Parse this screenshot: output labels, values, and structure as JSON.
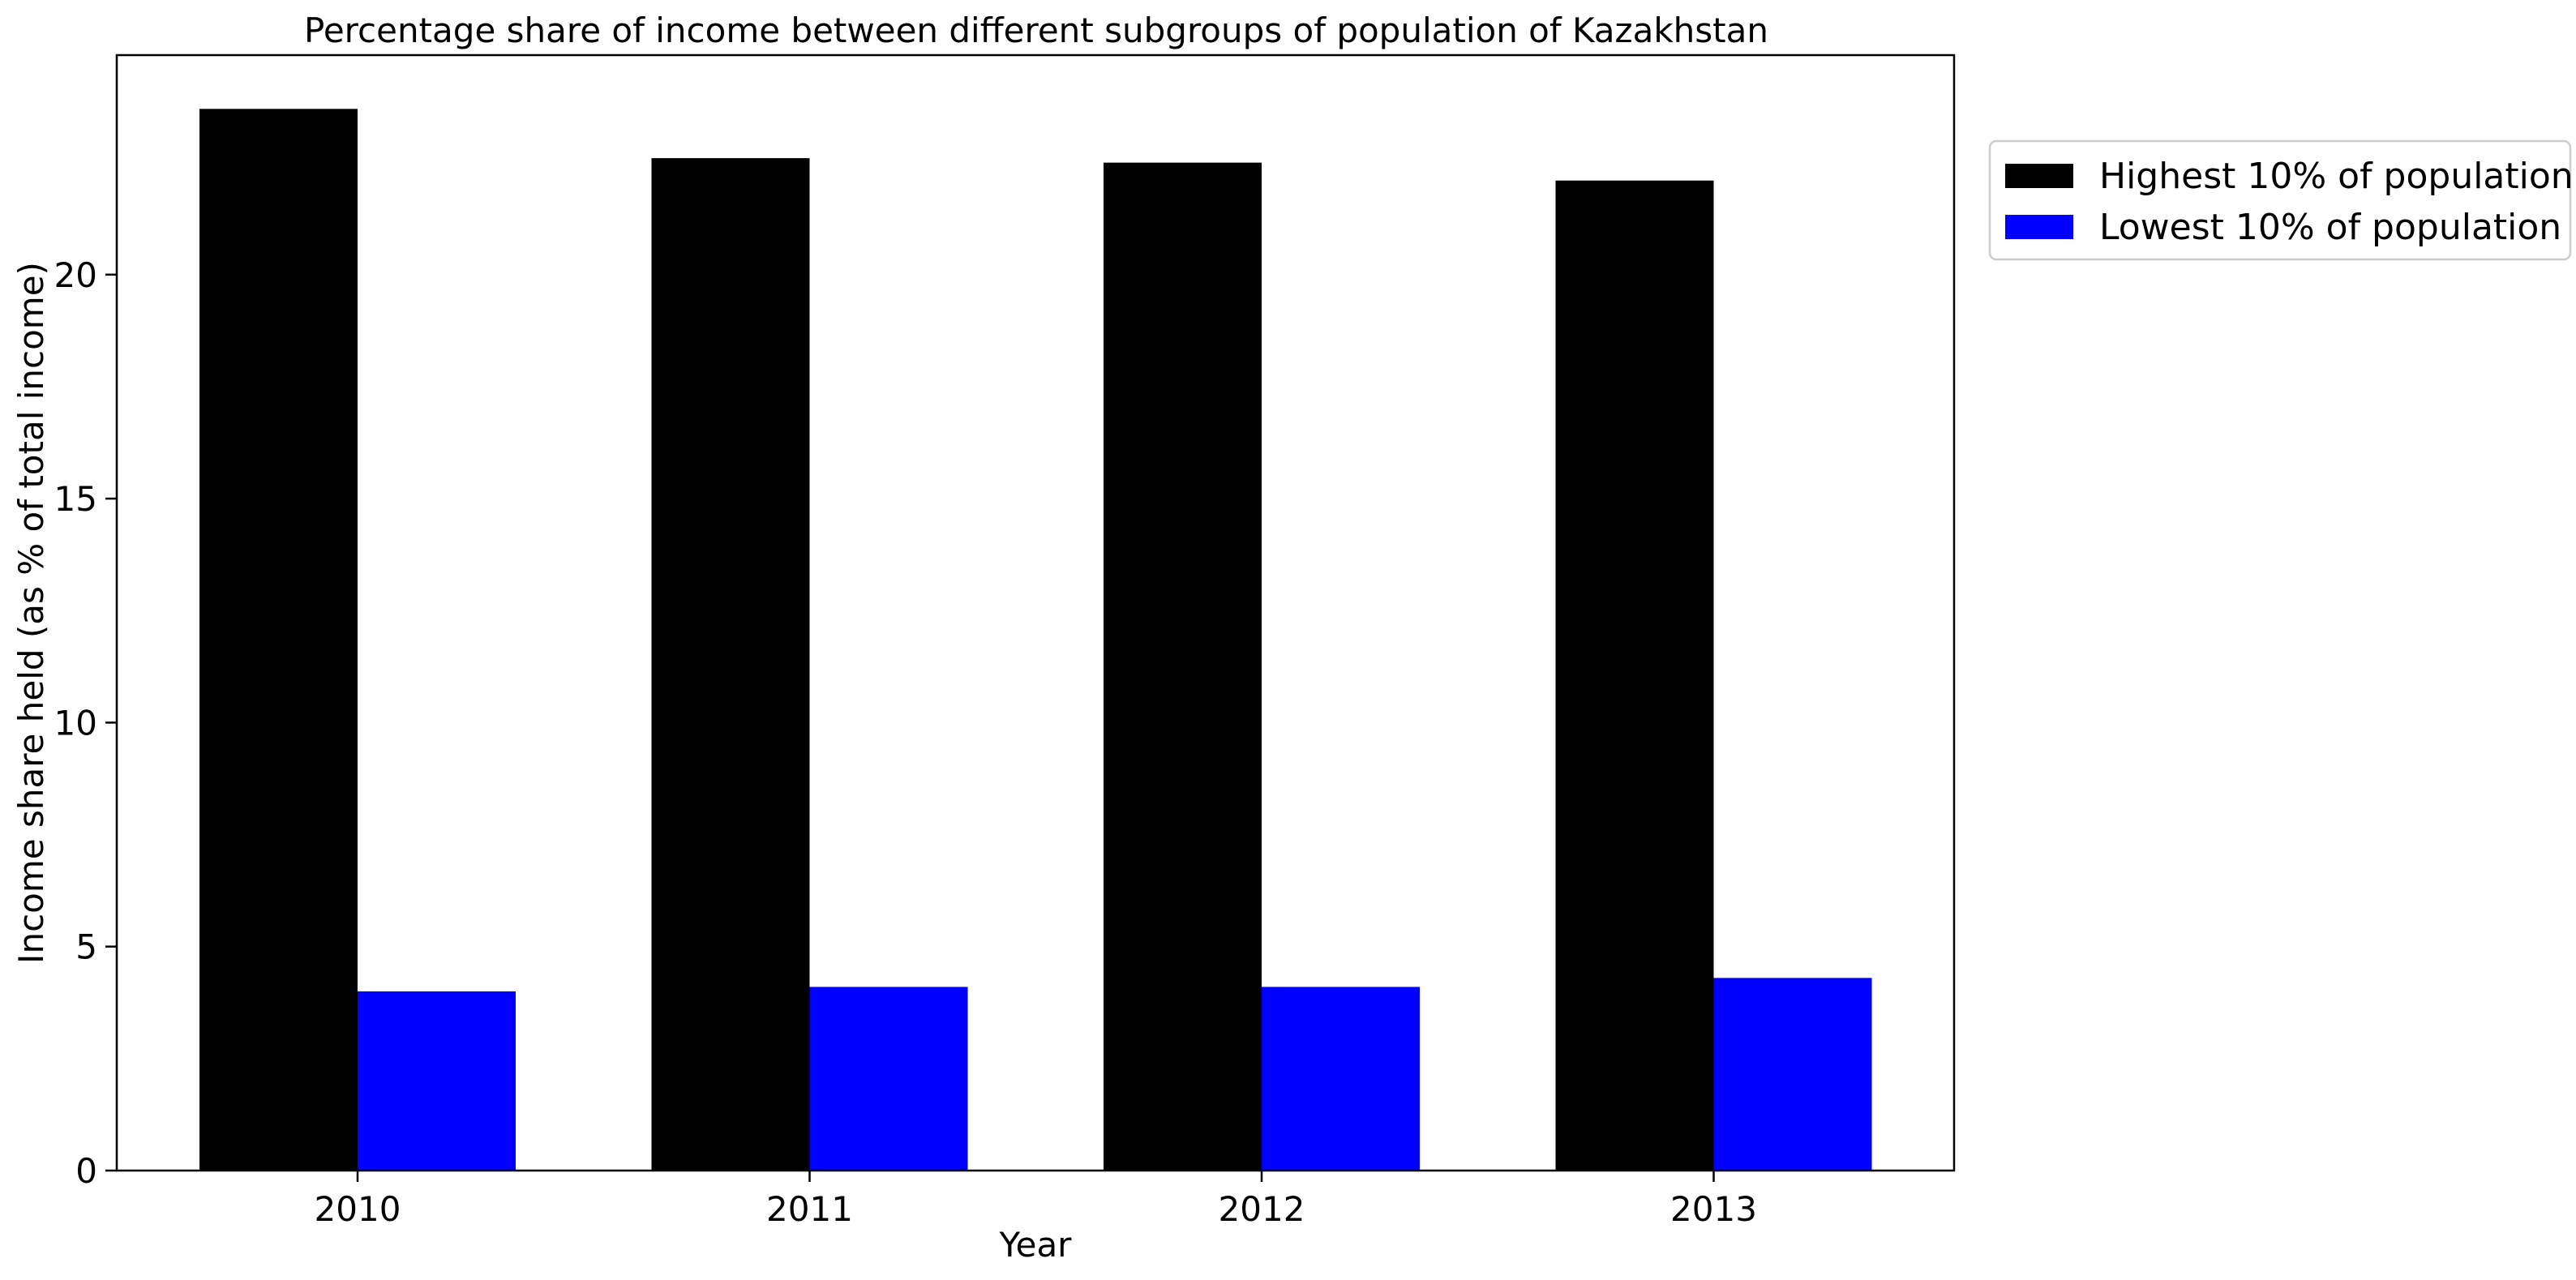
{
  "chart_data": {
    "type": "bar",
    "title": "Percentage share of income between different subgroups of population of Kazakhstan",
    "xlabel": "Year",
    "ylabel": "Income share held (as % of total income)",
    "categories": [
      "2010",
      "2011",
      "2012",
      "2013"
    ],
    "series": [
      {
        "name": "Highest 10% of population",
        "values": [
          23.7,
          22.6,
          22.5,
          22.1
        ],
        "color": "#000000"
      },
      {
        "name": "Lowest 10% of population",
        "values": [
          4.0,
          4.1,
          4.1,
          4.3
        ],
        "color": "#0000ff"
      }
    ],
    "ylim": [
      0,
      24.9
    ],
    "yticks": [
      0,
      5,
      10,
      15,
      20
    ],
    "grid": false,
    "legend_position": "upper-right-outside"
  }
}
